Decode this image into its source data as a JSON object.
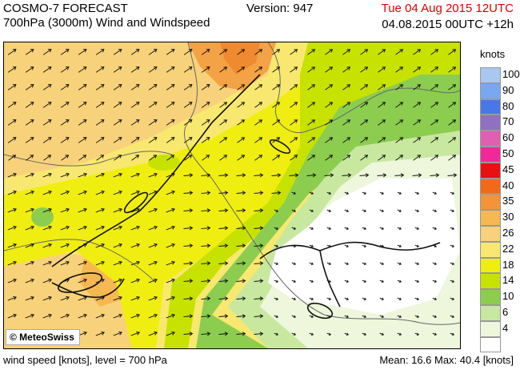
{
  "header": {
    "model": "COSMO-7 FORECAST",
    "field": "700hPa (3000m) Wind and Windspeed",
    "version": "Version: 947",
    "valid_time": "Tue 04 Aug 2015 12UTC",
    "run_time": "04.08.2015 00UTC +12h"
  },
  "legend": {
    "title": "knots",
    "levels": [
      {
        "label": "100",
        "color": "#a8c8f0"
      },
      {
        "label": "90",
        "color": "#78a8f0"
      },
      {
        "label": "80",
        "color": "#4878e8"
      },
      {
        "label": "70",
        "color": "#9070c0"
      },
      {
        "label": "60",
        "color": "#e060b0"
      },
      {
        "label": "50",
        "color": "#f02898"
      },
      {
        "label": "45",
        "color": "#e81010"
      },
      {
        "label": "40",
        "color": "#f06a18"
      },
      {
        "label": "35",
        "color": "#f49438"
      },
      {
        "label": "30",
        "color": "#f6b850"
      },
      {
        "label": "26",
        "color": "#f8d27a"
      },
      {
        "label": "22",
        "color": "#f8e870"
      },
      {
        "label": "18",
        "color": "#f0ee10"
      },
      {
        "label": "14",
        "color": "#c8e200"
      },
      {
        "label": "10",
        "color": "#8ccd50"
      },
      {
        "label": "6",
        "color": "#c8e8a0"
      },
      {
        "label": "4",
        "color": "#eef6dc"
      },
      {
        "label": "",
        "color": "#ffffff"
      }
    ]
  },
  "copyright": "© MeteoSwiss",
  "footer": {
    "left": "wind speed [knots], level = 700 hPa",
    "stats": "Mean:  16.6 Max:  40.4 [knots]"
  }
}
